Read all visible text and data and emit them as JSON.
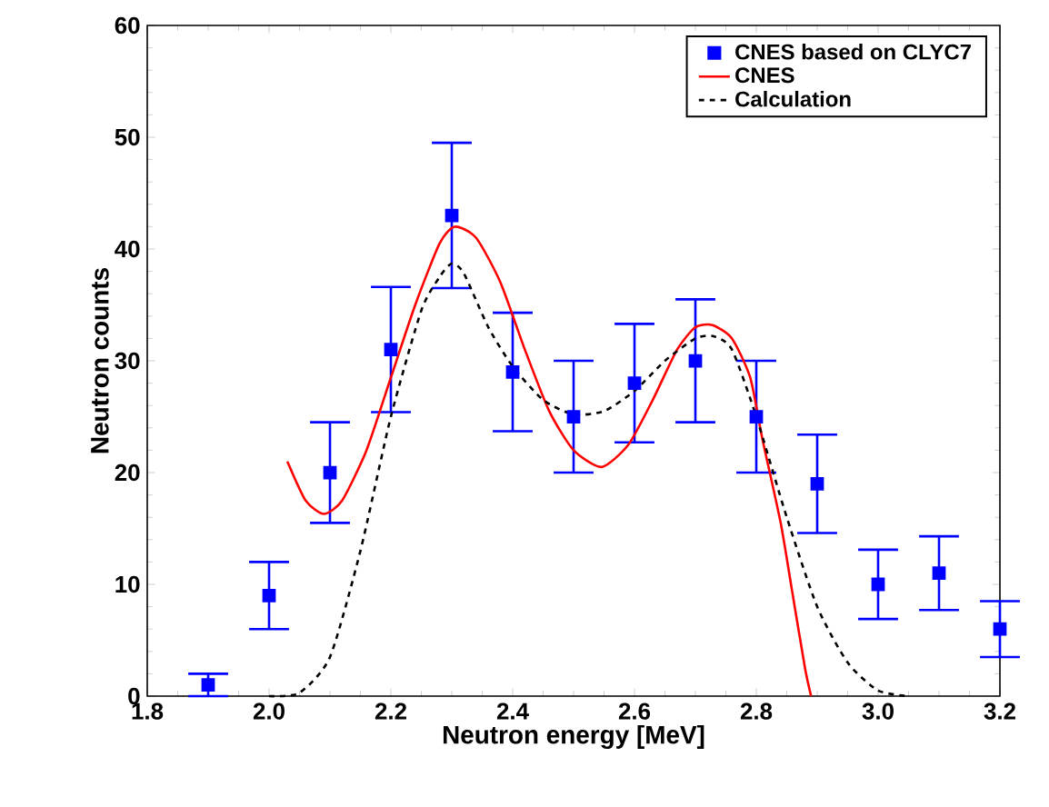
{
  "chart_data": {
    "type": "scatter",
    "xlabel": "Neutron energy [MeV]",
    "ylabel": "Neutron counts",
    "xlim": [
      1.8,
      3.2
    ],
    "ylim": [
      0,
      60
    ],
    "xticks": [
      {
        "value": 1.8,
        "label": "1.8"
      },
      {
        "value": 2.0,
        "label": "2.0"
      },
      {
        "value": 2.2,
        "label": "2.2"
      },
      {
        "value": 2.4,
        "label": "2.4"
      },
      {
        "value": 2.6,
        "label": "2.6"
      },
      {
        "value": 2.8,
        "label": "2.8"
      },
      {
        "value": 3.0,
        "label": "3.0"
      },
      {
        "value": 3.2,
        "label": "3.2"
      }
    ],
    "yticks": [
      0,
      10,
      20,
      30,
      40,
      50,
      60
    ],
    "grid": false,
    "legend": "top right",
    "series": [
      {
        "name": "CNES based on CLYC7",
        "marker": "square",
        "color": "#0000ff",
        "x": [
          1.9,
          2.0,
          2.1,
          2.2,
          2.3,
          2.4,
          2.5,
          2.6,
          2.7,
          2.8,
          2.9,
          3.0,
          3.1,
          3.2
        ],
        "values": [
          1,
          9,
          20,
          31,
          43,
          29,
          25,
          28,
          30,
          25,
          19,
          10,
          11,
          6
        ],
        "errors": [
          1,
          3,
          4.5,
          5.6,
          6.5,
          5.3,
          5,
          5.3,
          5.5,
          5,
          4.4,
          3.1,
          3.3,
          2.5
        ]
      },
      {
        "name": "CNES",
        "type": "line",
        "marker": "none",
        "line_style": "solid",
        "color": "#ff0000",
        "x": [
          2.03,
          2.06,
          2.09,
          2.12,
          2.16,
          2.2,
          2.24,
          2.28,
          2.305,
          2.34,
          2.38,
          2.42,
          2.46,
          2.5,
          2.546,
          2.59,
          2.63,
          2.67,
          2.7,
          2.728,
          2.76,
          2.79,
          2.81,
          2.84,
          2.86,
          2.88,
          2.89
        ],
        "values": [
          21,
          17.5,
          16.3,
          17.5,
          22,
          28.5,
          35,
          40.5,
          42,
          41,
          37,
          31,
          25.5,
          22,
          20.5,
          22.5,
          26.5,
          31,
          33,
          33.2,
          32,
          28.5,
          23,
          15.5,
          9,
          2.5,
          0
        ]
      },
      {
        "name": "Calculation",
        "type": "line",
        "marker": "none",
        "line_style": "dashed",
        "color": "#000000",
        "x": [
          2.0,
          2.05,
          2.1,
          2.15,
          2.2,
          2.25,
          2.28,
          2.3,
          2.32,
          2.36,
          2.4,
          2.45,
          2.5,
          2.55,
          2.6,
          2.65,
          2.7,
          2.73,
          2.76,
          2.8,
          2.85,
          2.9,
          2.95,
          3.0,
          3.05
        ],
        "values": [
          0,
          0.3,
          3.5,
          13,
          25,
          34.5,
          37.5,
          38.7,
          37.8,
          33,
          29.5,
          26.5,
          25.2,
          25.5,
          27.3,
          30,
          32,
          32.2,
          31,
          25,
          16,
          8,
          3,
          0.5,
          0
        ]
      }
    ]
  }
}
